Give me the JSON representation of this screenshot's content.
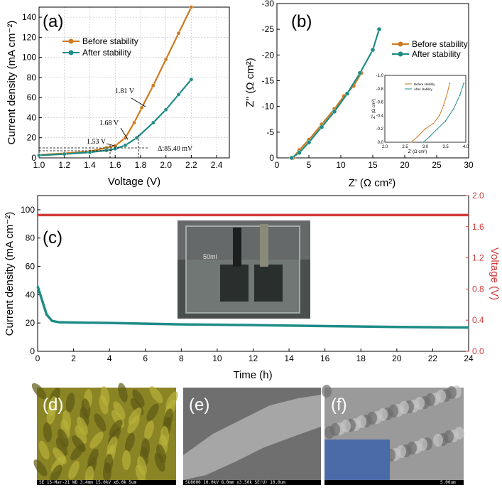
{
  "colors": {
    "before": "#cc7a1f",
    "after": "#1e8c86",
    "voltage": "#d03a3a",
    "voltage_axis": "#d03a3a",
    "photo_bg": "#4a4e4c",
    "sem_d": "#8a8424",
    "sem_e": "#8d8d8d",
    "sem_f": "#9a9a9a",
    "sem_inset": "#4a6aa8"
  },
  "panels": {
    "a": {
      "label": "(a)"
    },
    "b": {
      "label": "(b)"
    },
    "c": {
      "label": "(c)"
    },
    "d": {
      "label": "(d)",
      "footer": "SE   15-Mar-21          WD 3.4mm 15.0kV x6.0k   5um"
    },
    "e": {
      "label": "(e)",
      "footer": "SU8000 10.0kV 8.0mm x3.50k SE(U)                    10.0um"
    },
    "f": {
      "label": "(f)",
      "footer": "5.00um"
    }
  },
  "photo": {
    "beaker_text": "50ml"
  },
  "chart_data": [
    {
      "id": "a",
      "type": "line",
      "xlabel": "Voltage (V)",
      "ylabel": "Current density (mA cm⁻²)",
      "xlim": [
        1.0,
        2.5
      ],
      "ylim": [
        0,
        150
      ],
      "xticks": [
        "1.0",
        "1.2",
        "1.4",
        "1.6",
        "1.8",
        "2.0",
        "2.2",
        "2.4"
      ],
      "yticks": [
        "0",
        "20",
        "40",
        "60",
        "80",
        "100",
        "120",
        "140"
      ],
      "grid": true,
      "legend": "top-left",
      "series": [
        {
          "name": "Before stability",
          "x": [
            1.0,
            1.2,
            1.4,
            1.53,
            1.6,
            1.68,
            1.75,
            1.81,
            1.9,
            2.0,
            2.1,
            2.2
          ],
          "y": [
            3,
            4.5,
            6.5,
            10,
            12,
            20,
            35,
            50,
            72,
            98,
            124,
            150
          ]
        },
        {
          "name": "After stability",
          "x": [
            1.0,
            1.2,
            1.4,
            1.53,
            1.6,
            1.68,
            1.77,
            1.9,
            2.0,
            2.1,
            2.2
          ],
          "y": [
            2.5,
            3.8,
            5.5,
            7.5,
            9,
            12.5,
            20,
            35,
            48,
            63,
            78
          ]
        }
      ],
      "annotations": [
        "1.81 V",
        "1.68 V",
        "1.53 V",
        "Δ:85.40 mV"
      ]
    },
    {
      "id": "b",
      "type": "line",
      "xlabel": "Z' (Ω cm²)",
      "ylabel": "Z'' (Ω cm²)",
      "xlim": [
        0,
        30
      ],
      "ylim": [
        0,
        -30
      ],
      "xticks": [
        "0",
        "5",
        "10",
        "15",
        "20",
        "25",
        "30"
      ],
      "yticks": [
        "0",
        "-5",
        "-10",
        "-15",
        "-20",
        "-25",
        "-30"
      ],
      "legend": "top-right",
      "series": [
        {
          "name": "Before stability",
          "x": [
            2.5,
            3.5,
            5,
            7,
            9,
            10.5,
            12,
            13.2
          ],
          "y": [
            0,
            -1.5,
            -3.5,
            -6.5,
            -9.5,
            -12,
            -14,
            -16.5
          ]
        },
        {
          "name": "After stability",
          "x": [
            2.3,
            3.5,
            5,
            7,
            9,
            11,
            13,
            15,
            16
          ],
          "y": [
            0,
            -1,
            -3,
            -6,
            -9,
            -12.5,
            -16.5,
            -21,
            -25
          ]
        }
      ],
      "inset": {
        "xlabel": "Z' (Ω cm²)",
        "ylabel": "Z'' (Ω cm²)",
        "xlim": [
          2.0,
          4.0
        ],
        "ylim": [
          0,
          -1.0
        ],
        "xticks": [
          "2.0",
          "2.5",
          "3.0",
          "3.5",
          "4.0"
        ],
        "yticks": [
          "0.0",
          "-0.2",
          "-0.4",
          "-0.6",
          "-0.8",
          "-1.0"
        ],
        "series": [
          {
            "name": "Before stability",
            "x": [
              2.65,
              2.8,
              3.0,
              3.2,
              3.35,
              3.45,
              3.55,
              3.6
            ],
            "y": [
              0,
              -0.08,
              -0.2,
              -0.28,
              -0.4,
              -0.55,
              -0.75,
              -0.88
            ]
          },
          {
            "name": "After stability",
            "x": [
              2.95,
              3.1,
              3.3,
              3.5,
              3.7,
              3.85,
              3.95
            ],
            "y": [
              0,
              -0.08,
              -0.2,
              -0.32,
              -0.5,
              -0.7,
              -0.88
            ]
          }
        ]
      }
    },
    {
      "id": "c",
      "type": "line",
      "xlabel": "Time (h)",
      "ylabel": "Current density (mA cm⁻²)",
      "y2label": "Voltage (V)",
      "xlim": [
        0,
        24
      ],
      "ylim": [
        0,
        110
      ],
      "y2lim": [
        0.0,
        2.0
      ],
      "xticks": [
        "0",
        "2",
        "4",
        "6",
        "8",
        "10",
        "12",
        "14",
        "16",
        "18",
        "20",
        "22",
        "24"
      ],
      "yticks": [
        "0",
        "20",
        "40",
        "60",
        "80",
        "100"
      ],
      "y2ticks": [
        "0.0",
        "0.4",
        "0.8",
        "1.2",
        "1.6",
        "2.0"
      ],
      "series": [
        {
          "name": "Current density",
          "x": [
            0,
            0.2,
            0.5,
            0.8,
            1.2,
            4,
            8,
            12,
            16,
            20,
            24
          ],
          "y": [
            46,
            38,
            26,
            21.5,
            20.5,
            20,
            19,
            18.5,
            17.8,
            17.2,
            16.8
          ]
        },
        {
          "name": "Voltage",
          "axis": "right",
          "x": [
            0,
            24
          ],
          "y": [
            1.75,
            1.75
          ]
        }
      ]
    }
  ]
}
